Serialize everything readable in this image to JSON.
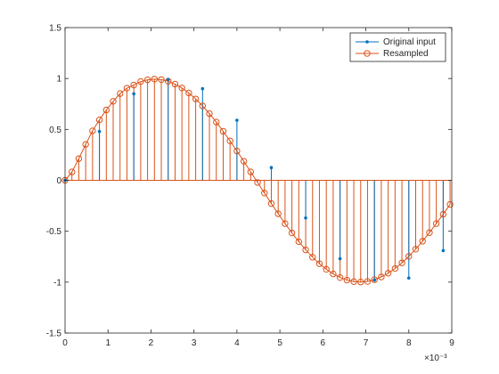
{
  "chart_data": {
    "type": "stem",
    "title": "",
    "xlabel": "",
    "ylabel": "",
    "x_exponent_label": "×10⁻³",
    "xlim": [
      0,
      9
    ],
    "ylim": [
      -1.5,
      1.5
    ],
    "x_ticks": [
      0,
      1,
      2,
      3,
      4,
      5,
      6,
      7,
      8,
      9
    ],
    "x_tick_labels": [
      "0",
      "1",
      "2",
      "3",
      "4",
      "5",
      "6",
      "7",
      "8",
      "9"
    ],
    "y_ticks": [
      1.5,
      1,
      0.5,
      0,
      -0.5,
      -1,
      -1.5
    ],
    "y_tick_labels": [
      "1.5",
      "1",
      "0.5",
      "0",
      "-0.5",
      "-1",
      "-1.5"
    ],
    "legend": {
      "position": "top-right",
      "entries": [
        "Original input",
        "Resampled"
      ]
    },
    "series": [
      {
        "name": "Original input",
        "color": "#0072BD",
        "marker": "point",
        "x": [
          0,
          0.8,
          1.6,
          2.4,
          3.2,
          4.0,
          4.8,
          5.6,
          6.4,
          7.2,
          8.0,
          8.8
        ],
        "y": [
          0.0,
          0.48,
          0.85,
          0.99,
          0.9,
          0.59,
          0.125,
          -0.37,
          -0.77,
          -0.98,
          -0.96,
          -0.69
        ]
      },
      {
        "name": "Resampled",
        "color": "#D95319",
        "marker": "circle",
        "x": [
          0,
          0.16,
          0.32,
          0.48,
          0.64,
          0.8,
          0.96,
          1.12,
          1.28,
          1.44,
          1.6,
          1.76,
          1.92,
          2.08,
          2.24,
          2.4,
          2.56,
          2.72,
          2.88,
          3.04,
          3.2,
          3.36,
          3.52,
          3.68,
          3.84,
          4.0,
          4.16,
          4.32,
          4.48,
          4.64,
          4.8,
          4.96,
          5.12,
          5.28,
          5.44,
          5.6,
          5.76,
          5.92,
          6.08,
          6.24,
          6.4,
          6.56,
          6.72,
          6.88,
          7.04,
          7.2,
          7.36,
          7.52,
          7.68,
          7.84,
          8.0,
          8.16,
          8.32,
          8.48,
          8.64,
          8.8,
          8.96
        ],
        "y": [
          0.0,
          0.082,
          0.213,
          0.353,
          0.486,
          0.594,
          0.691,
          0.776,
          0.852,
          0.905,
          0.936,
          0.97,
          0.987,
          0.994,
          0.989,
          0.973,
          0.945,
          0.907,
          0.858,
          0.799,
          0.731,
          0.655,
          0.572,
          0.482,
          0.387,
          0.288,
          0.187,
          0.083,
          -0.021,
          -0.125,
          -0.228,
          -0.328,
          -0.425,
          -0.517,
          -0.603,
          -0.683,
          -0.755,
          -0.819,
          -0.874,
          -0.919,
          -0.955,
          -0.98,
          -0.995,
          -0.999,
          -0.993,
          -0.976,
          -0.949,
          -0.912,
          -0.866,
          -0.811,
          -0.747,
          -0.676,
          -0.598,
          -0.514,
          -0.425,
          -0.333,
          -0.237
        ]
      }
    ]
  }
}
